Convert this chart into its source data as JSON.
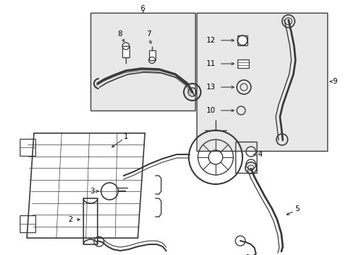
{
  "background_color": "#ffffff",
  "line_color": "#3a3a3a",
  "text_color": "#000000",
  "fill_light": "#e8e8e8",
  "fill_box": "#dcdcdc"
}
